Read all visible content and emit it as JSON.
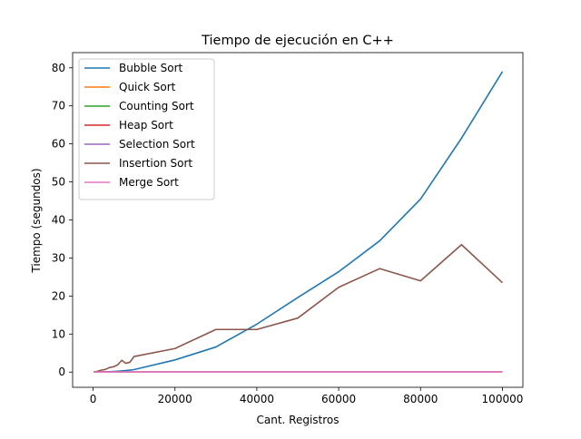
{
  "chart_data": {
    "type": "line",
    "title": "Tiempo de ejecución en C++",
    "xlabel": "Cant. Registros",
    "ylabel": "Tiempo (segundos)",
    "xlim": [
      -5000,
      105000
    ],
    "ylim": [
      -4,
      84
    ],
    "x_ticks": [
      0,
      20000,
      40000,
      60000,
      80000,
      100000
    ],
    "y_ticks": [
      0,
      10,
      20,
      30,
      40,
      50,
      60,
      70,
      80
    ],
    "grid": false,
    "legend_position": "upper-left",
    "series": [
      {
        "name": "Bubble Sort",
        "color": "#1f77b4",
        "x": [
          100,
          1000,
          2000,
          3000,
          4000,
          5000,
          6000,
          7000,
          8000,
          9000,
          10000,
          20000,
          30000,
          40000,
          50000,
          60000,
          70000,
          80000,
          90000,
          100000
        ],
        "y": [
          0,
          0.01,
          0.03,
          0.06,
          0.1,
          0.16,
          0.23,
          0.31,
          0.4,
          0.51,
          0.65,
          3.2,
          6.6,
          12.6,
          19.6,
          26.4,
          34.5,
          45.5,
          61.5,
          79
        ]
      },
      {
        "name": "Quick Sort",
        "color": "#ff7f0e",
        "x": [
          100,
          10000,
          20000,
          30000,
          40000,
          50000,
          60000,
          70000,
          80000,
          90000,
          100000
        ],
        "y": [
          0,
          0,
          0,
          0,
          0,
          0,
          0,
          0,
          0,
          0,
          0
        ]
      },
      {
        "name": "Counting Sort",
        "color": "#2ca02c",
        "x": [
          100,
          10000,
          20000,
          30000,
          40000,
          50000,
          60000,
          70000,
          80000,
          90000,
          100000
        ],
        "y": [
          0,
          0,
          0,
          0,
          0,
          0,
          0,
          0,
          0,
          0,
          0
        ]
      },
      {
        "name": "Heap Sort",
        "color": "#d62728",
        "x": [
          100,
          10000,
          20000,
          30000,
          40000,
          50000,
          60000,
          70000,
          80000,
          90000,
          100000
        ],
        "y": [
          0,
          0,
          0,
          0,
          0,
          0,
          0,
          0,
          0,
          0,
          0
        ]
      },
      {
        "name": "Selection Sort",
        "color": "#9467bd",
        "x": [
          100,
          10000,
          20000,
          30000,
          40000,
          50000,
          60000,
          70000,
          80000,
          90000,
          100000
        ],
        "y": [
          0,
          0,
          0,
          0,
          0,
          0,
          0,
          0,
          0,
          0,
          0
        ]
      },
      {
        "name": "Insertion Sort",
        "color": "#8c564b",
        "x": [
          100,
          1000,
          2000,
          3000,
          4000,
          5000,
          6000,
          7000,
          8000,
          9000,
          10000,
          20000,
          30000,
          40000,
          50000,
          60000,
          70000,
          80000,
          90000,
          100000
        ],
        "y": [
          0,
          0.2,
          0.5,
          0.7,
          1.2,
          1.4,
          1.9,
          3.1,
          2.3,
          2.6,
          4.1,
          6.2,
          11.2,
          11.2,
          14.2,
          22.3,
          27.2,
          24,
          33.5,
          23.5
        ]
      },
      {
        "name": "Merge Sort",
        "color": "#e377c2",
        "x": [
          100,
          10000,
          20000,
          30000,
          40000,
          50000,
          60000,
          70000,
          80000,
          90000,
          100000
        ],
        "y": [
          0,
          0,
          0,
          0,
          0,
          0,
          0,
          0,
          0,
          0,
          0
        ]
      }
    ]
  }
}
